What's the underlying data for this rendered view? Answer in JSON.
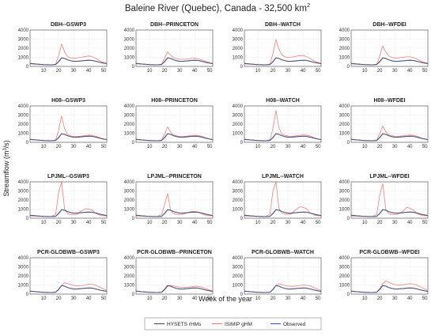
{
  "figure": {
    "title": "Baleine River (Quebec), Canada - 32,500 km",
    "title_sup": "2",
    "xlabel": "Week of the year",
    "ylabel": "Streamflow (m",
    "ylabel_sup": "3",
    "ylabel_end": "/s)"
  },
  "legend": {
    "items": [
      {
        "label": "HYSETS rHMs",
        "color": "#555555"
      },
      {
        "label": "ISIMIP gHM",
        "color": "#f08080"
      },
      {
        "label": "Observed",
        "color": "#4a5bd6"
      }
    ]
  },
  "chart_data": {
    "type": "line",
    "grid": true,
    "xlim": [
      1,
      52
    ],
    "ylim": [
      0,
      4000
    ],
    "xticks": [
      10,
      20,
      30,
      40,
      50
    ],
    "yticks": [
      0,
      1000,
      2000,
      3000,
      4000
    ],
    "x": [
      1,
      5,
      10,
      15,
      18,
      20,
      22,
      24,
      26,
      28,
      30,
      32,
      35,
      38,
      40,
      42,
      45,
      48,
      52
    ],
    "observed": [
      320,
      260,
      200,
      170,
      200,
      500,
      930,
      870,
      720,
      620,
      560,
      560,
      600,
      650,
      660,
      660,
      560,
      430,
      300
    ],
    "hysets": [
      330,
      270,
      210,
      180,
      220,
      560,
      960,
      880,
      730,
      630,
      570,
      570,
      620,
      670,
      680,
      670,
      560,
      420,
      300
    ],
    "panels": [
      {
        "title": "DBH--GSWP3",
        "ghm": [
          280,
          230,
          180,
          160,
          250,
          1200,
          2450,
          1600,
          1050,
          950,
          900,
          920,
          1000,
          1100,
          1150,
          1100,
          850,
          550,
          330
        ]
      },
      {
        "title": "DBH--PRINCETON",
        "ghm": [
          290,
          240,
          190,
          165,
          240,
          900,
          1600,
          1250,
          950,
          850,
          790,
          780,
          820,
          880,
          900,
          860,
          700,
          500,
          320
        ]
      },
      {
        "title": "DBH--WATCH",
        "ghm": [
          280,
          230,
          180,
          160,
          260,
          1400,
          2950,
          1900,
          1250,
          1050,
          980,
          1000,
          1100,
          1200,
          1200,
          1100,
          850,
          550,
          330
        ]
      },
      {
        "title": "DBH--WFDEI",
        "ghm": [
          280,
          230,
          180,
          160,
          250,
          1100,
          2250,
          1600,
          1150,
          980,
          920,
          920,
          1000,
          1050,
          1050,
          1000,
          800,
          520,
          320
        ]
      },
      {
        "title": "H08--GSWP3",
        "ghm": [
          300,
          240,
          190,
          160,
          260,
          1300,
          2900,
          1500,
          850,
          700,
          650,
          640,
          680,
          750,
          800,
          780,
          650,
          450,
          300
        ]
      },
      {
        "title": "H08--PRINCETON",
        "ghm": [
          300,
          240,
          190,
          160,
          250,
          900,
          1700,
          1100,
          800,
          700,
          650,
          640,
          680,
          750,
          780,
          760,
          640,
          450,
          300
        ]
      },
      {
        "title": "H08--WATCH",
        "ghm": [
          300,
          240,
          190,
          160,
          280,
          1500,
          3500,
          1600,
          900,
          750,
          680,
          660,
          700,
          780,
          820,
          800,
          680,
          460,
          300
        ]
      },
      {
        "title": "H08--WFDEI",
        "ghm": [
          300,
          240,
          190,
          160,
          250,
          950,
          1800,
          1150,
          820,
          720,
          660,
          650,
          700,
          770,
          800,
          780,
          650,
          450,
          300
        ]
      },
      {
        "title": "LPJML--GSWP3",
        "ghm": [
          250,
          220,
          200,
          180,
          400,
          2800,
          4000,
          1000,
          500,
          400,
          380,
          400,
          800,
          1050,
          1000,
          900,
          500,
          300,
          250
        ]
      },
      {
        "title": "LPJML--PRINCETON",
        "ghm": [
          250,
          220,
          200,
          180,
          400,
          1500,
          2700,
          900,
          500,
          420,
          400,
          420,
          600,
          750,
          720,
          680,
          450,
          300,
          250
        ]
      },
      {
        "title": "LPJML--WATCH",
        "ghm": [
          250,
          220,
          200,
          180,
          450,
          3000,
          4000,
          1100,
          550,
          450,
          420,
          450,
          900,
          1250,
          1200,
          1050,
          550,
          320,
          250
        ]
      },
      {
        "title": "LPJML--WFDEI",
        "ghm": [
          250,
          220,
          200,
          180,
          400,
          2500,
          3800,
          1000,
          500,
          420,
          400,
          420,
          700,
          1200,
          1100,
          950,
          500,
          300,
          250
        ]
      },
      {
        "title": "PCR-GLOBWB--GSWP3",
        "ghm": [
          300,
          250,
          200,
          170,
          210,
          500,
          950,
          1250,
          1150,
          1050,
          950,
          900,
          920,
          1000,
          1100,
          1100,
          950,
          700,
          400
        ]
      },
      {
        "title": "PCR-GLOBWB--PRINCETON",
        "ghm": [
          300,
          250,
          200,
          170,
          210,
          450,
          850,
          950,
          900,
          820,
          760,
          740,
          760,
          800,
          850,
          850,
          750,
          560,
          350
        ]
      },
      {
        "title": "PCR-GLOBWB--WATCH",
        "ghm": [
          300,
          250,
          200,
          170,
          210,
          500,
          950,
          1150,
          1050,
          950,
          880,
          850,
          880,
          950,
          1000,
          1000,
          880,
          650,
          380
        ]
      },
      {
        "title": "PCR-GLOBWB--WFDEI",
        "ghm": [
          300,
          250,
          200,
          170,
          210,
          600,
          1150,
          1450,
          1300,
          1150,
          1050,
          1000,
          1020,
          1100,
          1150,
          1120,
          980,
          720,
          400
        ]
      }
    ]
  }
}
